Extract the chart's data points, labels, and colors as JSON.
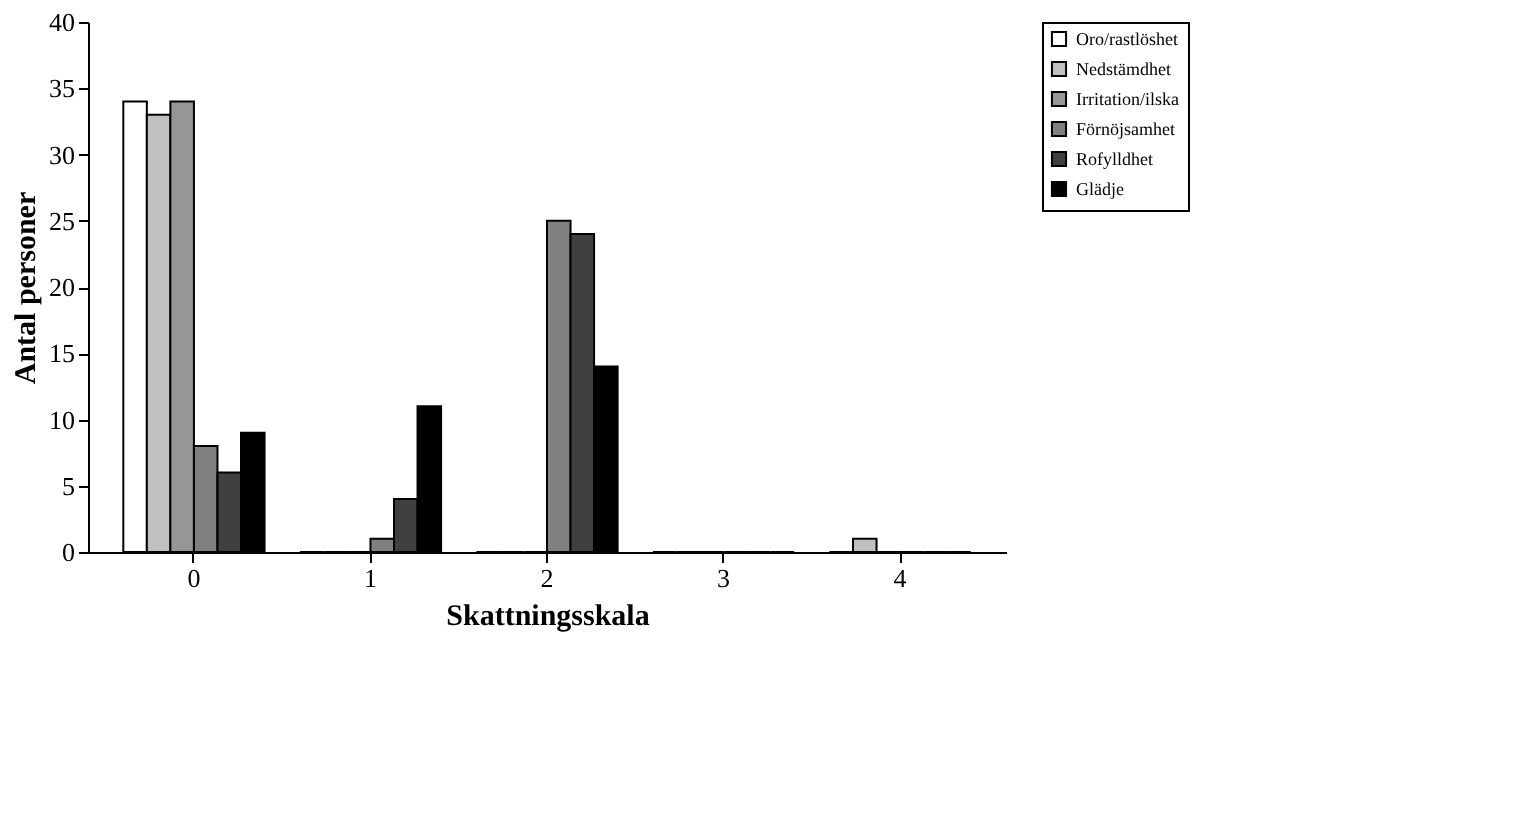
{
  "chart_data": {
    "type": "bar",
    "xlabel": "Skattningsskala",
    "ylabel": "Antal personer",
    "categories": [
      "0",
      "1",
      "2",
      "3",
      "4"
    ],
    "series": [
      {
        "name": "Oro/rastlöshet",
        "color": "#ffffff",
        "values": [
          34,
          0,
          0,
          0,
          0
        ]
      },
      {
        "name": "Nedstämdhet",
        "color": "#c0c0c0",
        "values": [
          33,
          0,
          0,
          0,
          1
        ]
      },
      {
        "name": "Irritation/ilska",
        "color": "#969696",
        "values": [
          34,
          0,
          0,
          0,
          0
        ]
      },
      {
        "name": "Förnöjsamhet",
        "color": "#808080",
        "values": [
          8,
          1,
          25,
          0,
          0
        ]
      },
      {
        "name": "Rofylldhet",
        "color": "#404040",
        "values": [
          6,
          4,
          24,
          0,
          0
        ]
      },
      {
        "name": "Glädje",
        "color": "#000000",
        "values": [
          9,
          11,
          14,
          0,
          0
        ]
      }
    ],
    "ylim": [
      0,
      40
    ],
    "yticks": [
      0,
      5,
      10,
      15,
      20,
      25,
      30,
      35,
      40
    ],
    "grid": false,
    "legend": "right"
  }
}
